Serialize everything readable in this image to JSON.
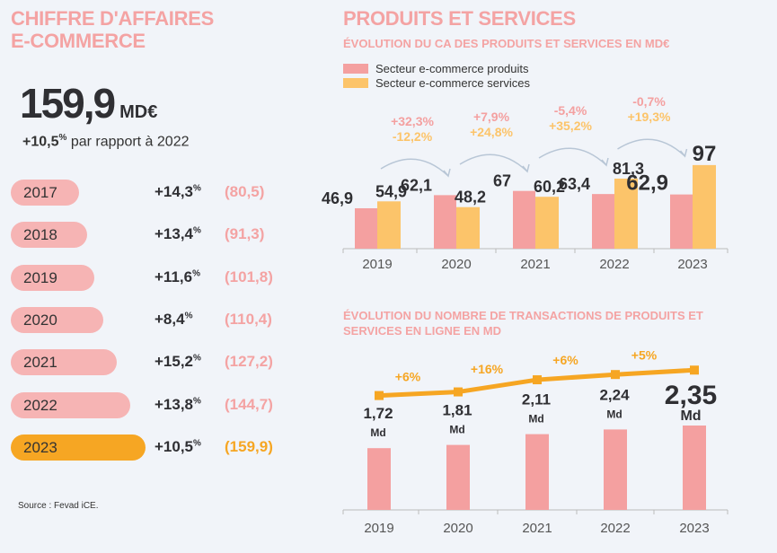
{
  "left": {
    "title_l1": "CHIFFRE D'AFFAIRES",
    "title_l2": "E-COMMERCE",
    "total": "159,9",
    "unit": "MD€",
    "growth": "+10,5",
    "growth_pct": "%",
    "growth_text": "par rapport à 2022",
    "rows": [
      {
        "year": "2017",
        "pct": "+14,3",
        "val": "(80,5)"
      },
      {
        "year": "2018",
        "pct": "+13,4",
        "val": "(91,3)"
      },
      {
        "year": "2019",
        "pct": "+11,6",
        "val": "(101,8)"
      },
      {
        "year": "2020",
        "pct": "+8,4",
        "val": "(110,4)"
      },
      {
        "year": "2021",
        "pct": "+15,2",
        "val": "(127,2)"
      },
      {
        "year": "2022",
        "pct": "+13,8",
        "val": "(144,7)"
      },
      {
        "year": "2023",
        "pct": "+10,5",
        "val": "(159,9)"
      }
    ],
    "source": "Source : Fevad iCE."
  },
  "colors": {
    "pink": "#f4a0a0",
    "orange": "#fcc46a",
    "line": "#f6a623",
    "dark": "#2f2f33"
  },
  "chart_data": [
    {
      "type": "bar",
      "title": "PRODUITS ET SERVICES",
      "subtitle": "ÉVOLUTION DU CA DES PRODUITS ET SERVICES EN MD€",
      "categories": [
        "2019",
        "2020",
        "2021",
        "2022",
        "2023"
      ],
      "series": [
        {
          "name": "Secteur e-commerce produits",
          "values": [
            46.9,
            62.1,
            67,
            63.4,
            62.9
          ],
          "labels": [
            "46,9",
            "62,1",
            "67",
            "63,4",
            "62,9"
          ]
        },
        {
          "name": "Secteur e-commerce services",
          "values": [
            54.9,
            48.2,
            60.2,
            81.3,
            97
          ],
          "labels": [
            "54,9",
            "48,2",
            "60,2",
            "81,3",
            "97"
          ]
        }
      ],
      "changes": [
        {
          "produits": "+32,3%",
          "services": "-12,2%"
        },
        {
          "produits": "+7,9%",
          "services": "+24,8%"
        },
        {
          "produits": "-5,4%",
          "services": "+35,2%"
        },
        {
          "produits": "-0,7%",
          "services": "+19,3%"
        }
      ]
    },
    {
      "type": "bar",
      "title": "ÉVOLUTION DU NOMBRE DE TRANSACTIONS DE PRODUITS ET SERVICES EN LIGNE EN MD",
      "categories": [
        "2019",
        "2020",
        "2021",
        "2022",
        "2023"
      ],
      "values": [
        1.72,
        1.81,
        2.11,
        2.24,
        2.35
      ],
      "labels": [
        "1,72",
        "1,81",
        "2,11",
        "2,24",
        "2,35"
      ],
      "unit": "Md",
      "changes": [
        "+6%",
        "+16%",
        "+6%",
        "+5%"
      ]
    }
  ]
}
